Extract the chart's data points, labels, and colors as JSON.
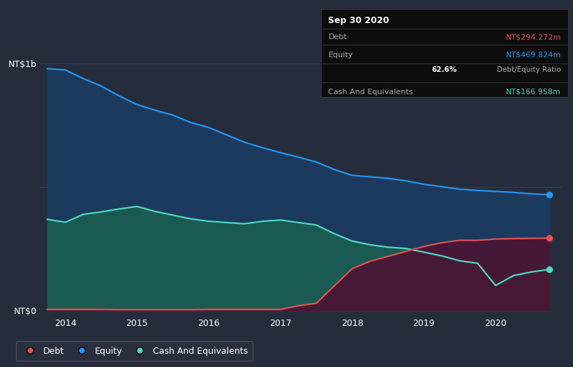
{
  "background_color": "#252d3d",
  "plot_bg_color": "#252d3d",
  "debt_color": "#e05252",
  "equity_color": "#2196f3",
  "cash_color": "#4dd9c0",
  "equity_fill": "#1a3a5c",
  "cash_fill_teal": "#1a6058",
  "debt_fill": "#5c1a3a",
  "grid_color": "#3a4560",
  "years": [
    2013.75,
    2014.0,
    2014.25,
    2014.5,
    2014.75,
    2015.0,
    2015.25,
    2015.5,
    2015.75,
    2016.0,
    2016.25,
    2016.5,
    2016.75,
    2017.0,
    2017.25,
    2017.5,
    2017.75,
    2018.0,
    2018.25,
    2018.5,
    2018.75,
    2019.0,
    2019.25,
    2019.5,
    2019.75,
    2020.0,
    2020.25,
    2020.5,
    2020.75
  ],
  "equity": [
    980,
    975,
    940,
    910,
    870,
    835,
    812,
    792,
    762,
    742,
    712,
    682,
    660,
    640,
    622,
    602,
    572,
    548,
    542,
    536,
    526,
    512,
    502,
    492,
    487,
    483,
    479,
    473,
    470
  ],
  "cash": [
    370,
    358,
    390,
    400,
    412,
    422,
    402,
    387,
    372,
    362,
    357,
    352,
    362,
    367,
    357,
    347,
    312,
    282,
    267,
    257,
    252,
    237,
    222,
    202,
    192,
    102,
    142,
    157,
    167
  ],
  "debt": [
    5,
    5,
    5,
    5,
    4,
    4,
    4,
    4,
    4,
    5,
    5,
    5,
    5,
    5,
    20,
    30,
    100,
    170,
    200,
    220,
    240,
    260,
    275,
    285,
    285,
    290,
    292,
    293,
    294
  ],
  "ylim_max": 1050,
  "ylim_min": -20,
  "xlim_min": 2013.65,
  "xlim_max": 2020.92,
  "x_ticks": [
    2014,
    2015,
    2016,
    2017,
    2018,
    2019,
    2020
  ],
  "ylabel_top": "NT$1b",
  "ylabel_bot": "NT$0",
  "title": "Sep 30 2020",
  "tooltip_bg": "#0d0d0d",
  "tooltip_debt_val": "NT$294.272m",
  "tooltip_equity_val": "NT$469.824m",
  "tooltip_ratio": "62.6%",
  "tooltip_cash_val": "NT$166.958m",
  "legend_labels": [
    "Debt",
    "Equity",
    "Cash And Equivalents"
  ]
}
